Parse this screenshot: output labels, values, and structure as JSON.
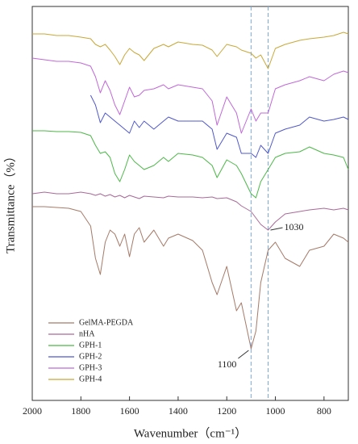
{
  "chart_data": {
    "type": "line",
    "xlabel": "Wavenumber（cm⁻¹）",
    "ylabel": "Transmittance（%）",
    "x": [
      2000,
      1950,
      1900,
      1850,
      1800,
      1760,
      1740,
      1720,
      1700,
      1680,
      1660,
      1640,
      1620,
      1600,
      1580,
      1560,
      1540,
      1500,
      1460,
      1440,
      1400,
      1340,
      1300,
      1260,
      1240,
      1200,
      1160,
      1140,
      1100,
      1080,
      1060,
      1030,
      1000,
      960,
      900,
      860,
      800,
      760,
      720,
      700
    ],
    "xlim": [
      2000,
      700
    ],
    "xticks": [
      2000,
      1800,
      1600,
      1400,
      1200,
      1000,
      800
    ],
    "ylim": [
      0,
      488
    ],
    "legend": "lower left",
    "series": [
      {
        "name": "GelMA-PEGDA",
        "color": "#a57a68",
        "values": [
          240,
          240,
          239,
          238,
          234,
          216,
          176,
          156,
          196,
          211,
          206,
          191,
          206,
          178,
          206,
          214,
          196,
          211,
          191,
          201,
          206,
          198,
          186,
          146,
          131,
          166,
          111,
          121,
          64,
          86,
          146,
          186,
          196,
          176,
          166,
          186,
          191,
          206,
          201,
          196
        ]
      },
      {
        "name": "nHA",
        "color": "#a86a98",
        "values": [
          256,
          258,
          256,
          256,
          258,
          256,
          254,
          256,
          253,
          255,
          252,
          254,
          251,
          254,
          252,
          250,
          253,
          252,
          251,
          253,
          252,
          252,
          251,
          252,
          250,
          251,
          246,
          241,
          234,
          226,
          218,
          211,
          221,
          231,
          234,
          236,
          238,
          236,
          238,
          236
        ]
      },
      {
        "name": "GPH-1",
        "color": "#4cb848",
        "values": [
          334,
          334,
          333,
          333,
          332,
          328,
          316,
          306,
          308,
          301,
          281,
          271,
          286,
          304,
          296,
          291,
          286,
          291,
          301,
          296,
          306,
          304,
          301,
          291,
          276,
          298,
          291,
          281,
          256,
          251,
          271,
          286,
          301,
          306,
          308,
          314,
          306,
          304,
          301,
          286
        ]
      },
      {
        "name": "GPH-2",
        "color": "#5058c8",
        "values": [
          null,
          null,
          null,
          null,
          null,
          378,
          366,
          344,
          356,
          351,
          346,
          341,
          336,
          331,
          346,
          338,
          346,
          336,
          346,
          351,
          346,
          346,
          346,
          336,
          311,
          331,
          326,
          306,
          306,
          301,
          316,
          306,
          331,
          336,
          341,
          351,
          346,
          348,
          351,
          348
        ]
      },
      {
        "name": "GPH-3",
        "color": "#c068d8",
        "values": [
          424,
          422,
          420,
          420,
          418,
          414,
          401,
          381,
          396,
          384,
          366,
          354,
          371,
          388,
          376,
          378,
          384,
          386,
          391,
          386,
          391,
          388,
          386,
          371,
          341,
          376,
          356,
          331,
          361,
          346,
          356,
          356,
          386,
          391,
          396,
          401,
          396,
          404,
          408,
          406
        ]
      },
      {
        "name": "GPH-4",
        "color": "#c8a838",
        "values": [
          454,
          454,
          452,
          452,
          450,
          448,
          441,
          438,
          441,
          434,
          426,
          416,
          428,
          436,
          431,
          428,
          421,
          436,
          441,
          438,
          444,
          441,
          440,
          434,
          426,
          441,
          438,
          434,
          430,
          424,
          428,
          411,
          436,
          441,
          446,
          448,
          450,
          452,
          456,
          454
        ]
      }
    ],
    "annotations": [
      {
        "text": "1100",
        "x": 1100
      },
      {
        "text": "1030",
        "x": 1030
      }
    ]
  }
}
